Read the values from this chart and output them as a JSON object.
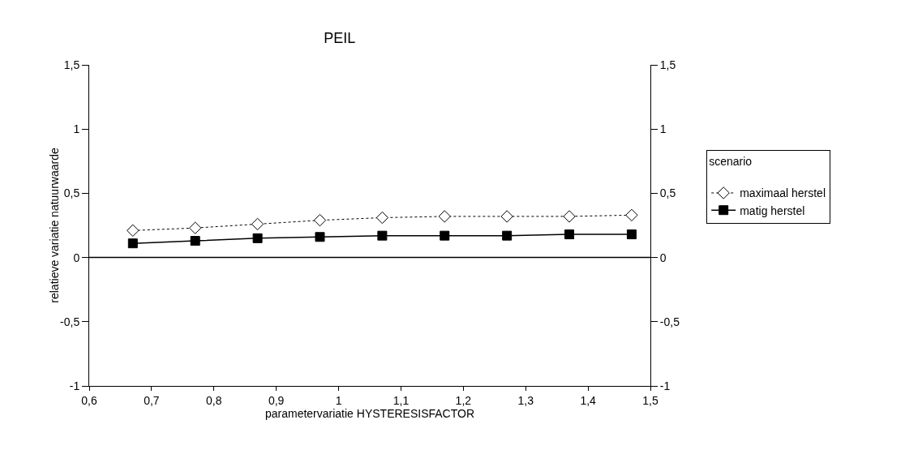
{
  "chart_data": {
    "type": "line",
    "title": "PEIL",
    "xlabel": "parametervariatie HYSTERESISFACTOR",
    "ylabel": "relatieve variatie natuurwaarde",
    "legend_title": "scenario",
    "x": [
      0.67,
      0.77,
      0.87,
      0.97,
      1.07,
      1.17,
      1.27,
      1.37,
      1.47
    ],
    "series": [
      {
        "name": "maximaal herstel",
        "color": "#ffffff",
        "marker": "diamond",
        "line_style": "dotted",
        "values": [
          0.21,
          0.23,
          0.26,
          0.29,
          0.31,
          0.32,
          0.32,
          0.32,
          0.33
        ]
      },
      {
        "name": "matig herstel",
        "color": "#000000",
        "marker": "square",
        "line_style": "solid",
        "values": [
          0.11,
          0.13,
          0.15,
          0.16,
          0.17,
          0.17,
          0.17,
          0.18,
          0.18
        ]
      }
    ],
    "xlim": [
      0.6,
      1.5
    ],
    "xticks": [
      {
        "value": 0.6,
        "label": "0,6"
      },
      {
        "value": 0.7,
        "label": "0,7"
      },
      {
        "value": 0.8,
        "label": "0,8"
      },
      {
        "value": 0.9,
        "label": "0,9"
      },
      1,
      {
        "value": 1.1,
        "label": "1,1"
      },
      {
        "value": 1.2,
        "label": "1,2"
      },
      {
        "value": 1.3,
        "label": "1,3"
      },
      {
        "value": 1.4,
        "label": "1,4"
      },
      {
        "value": 1.5,
        "label": "1,5"
      }
    ],
    "ylim": [
      -1,
      1.5
    ],
    "yticks": [
      -1,
      {
        "value": -0.5,
        "label": "-0,5"
      },
      0,
      {
        "value": 0.5,
        "label": "0,5"
      },
      1,
      {
        "value": 1.5,
        "label": "1,5"
      }
    ],
    "y2lim": [
      -1,
      1.5
    ],
    "y2ticks": [
      -1,
      {
        "value": -0.5,
        "label": "-0,5"
      },
      0,
      {
        "value": 0.5,
        "label": "0,5"
      },
      1,
      {
        "value": 1.5,
        "label": "1,5"
      }
    ],
    "ref_lines": [
      {
        "axis": "y",
        "value": 0,
        "color": "#000000",
        "line_style": "solid"
      }
    ],
    "grid": false,
    "legend": "right"
  }
}
